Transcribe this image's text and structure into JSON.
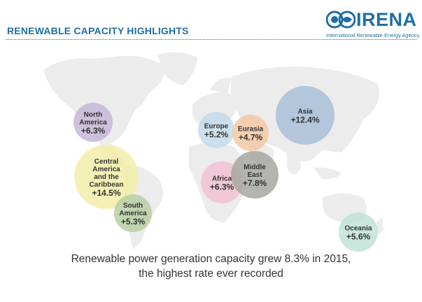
{
  "header": {
    "title": "RENEWABLE CAPACITY HIGHLIGHTS",
    "logo_text": "IRENA",
    "logo_subtitle": "International Renewable Energy Agency"
  },
  "colors": {
    "brand": "#1d6fa5",
    "map": "#ececec",
    "text": "#333333"
  },
  "chart_data": {
    "type": "bubble-map",
    "unit": "%",
    "regions": [
      {
        "name": "North America",
        "lines": [
          "North",
          "America"
        ],
        "value": 6.3,
        "label": "+6.3%",
        "color": "#c5b7d8"
      },
      {
        "name": "Central America and the Caribbean",
        "lines": [
          "Central",
          "America",
          "and the",
          "Caribbean"
        ],
        "value": 14.5,
        "label": "+14.5%",
        "color": "#f3efa9"
      },
      {
        "name": "South America",
        "lines": [
          "South",
          "America"
        ],
        "value": 5.3,
        "label": "+5.3%",
        "color": "#b7cfa3"
      },
      {
        "name": "Europe",
        "lines": [
          "Europe"
        ],
        "value": 5.2,
        "label": "+5.2%",
        "color": "#c3dcea"
      },
      {
        "name": "Eurasia",
        "lines": [
          "Eurasia"
        ],
        "value": 4.7,
        "label": "+4.7%",
        "color": "#f4c9a3"
      },
      {
        "name": "Africa",
        "lines": [
          "Africa"
        ],
        "value": 6.3,
        "label": "+6.3%",
        "color": "#f2c2d4"
      },
      {
        "name": "Middle East",
        "lines": [
          "Middle",
          "East"
        ],
        "value": 7.8,
        "label": "+7.8%",
        "color": "#a8a8a2"
      },
      {
        "name": "Asia",
        "lines": [
          "Asia"
        ],
        "value": 12.4,
        "label": "+12.4%",
        "color": "#a9bfd8"
      },
      {
        "name": "Oceania",
        "lines": [
          "Oceania"
        ],
        "value": 5.6,
        "label": "+5.6%",
        "color": "#bfe3d6"
      }
    ]
  },
  "caption": {
    "line1": "Renewable power generation capacity grew 8.3% in 2015,",
    "line2": "the highest rate ever recorded"
  }
}
